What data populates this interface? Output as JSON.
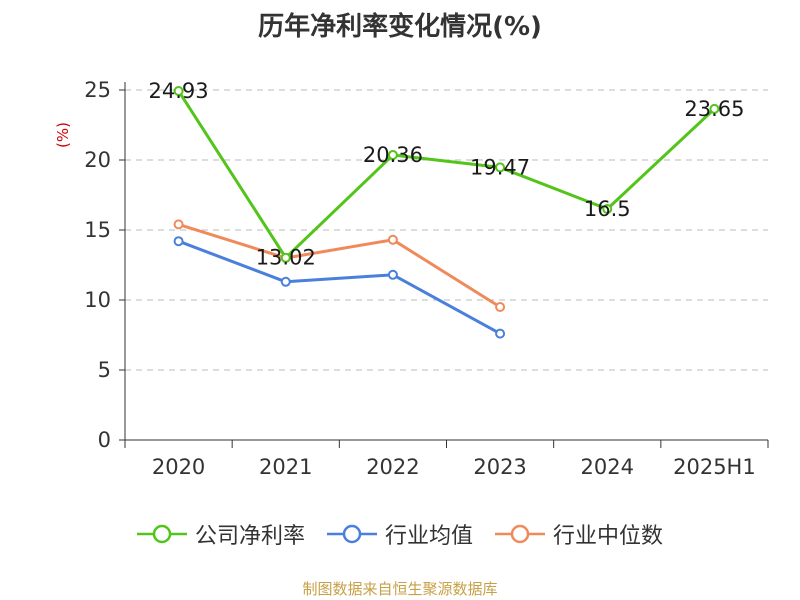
{
  "source_text": "制图数据来自恒生聚源数据库",
  "chart_data": {
    "type": "line",
    "title": "历年净利率变化情况(%)",
    "ylabel": "(%)",
    "xlabel": "",
    "categories": [
      "2020",
      "2021",
      "2022",
      "2023",
      "2024",
      "2025H1"
    ],
    "ylim": [
      0,
      25
    ],
    "yticks": [
      0,
      5,
      10,
      15,
      20,
      25
    ],
    "grid": true,
    "legend_position": "bottom",
    "series": [
      {
        "name": "公司净利率",
        "color": "#52c41a",
        "values": [
          24.93,
          13.02,
          20.36,
          19.47,
          16.5,
          23.65
        ],
        "labels": [
          "24.93",
          "13.02",
          "20.36",
          "19.47",
          "16.5",
          "23.65"
        ]
      },
      {
        "name": "行业均值",
        "color": "#4a7fdc",
        "values": [
          14.2,
          11.3,
          11.8,
          7.6,
          null,
          null
        ]
      },
      {
        "name": "行业中位数",
        "color": "#f08a5a",
        "values": [
          15.4,
          13.0,
          14.3,
          9.5,
          null,
          null
        ]
      }
    ]
  }
}
